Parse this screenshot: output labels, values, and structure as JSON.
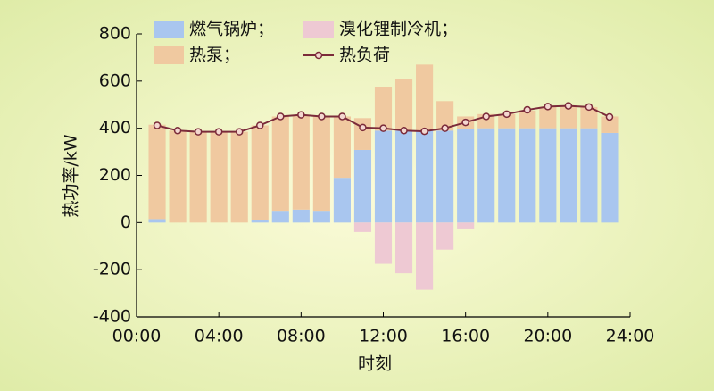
{
  "chart_data": {
    "type": "bar",
    "x": [
      1,
      2,
      3,
      4,
      5,
      6,
      7,
      8,
      9,
      10,
      11,
      12,
      13,
      14,
      15,
      16,
      17,
      18,
      19,
      20,
      21,
      22,
      23
    ],
    "series": [
      {
        "name": "燃气锅炉；",
        "color": "#a9c6ef",
        "type": "bar",
        "values": [
          15,
          0,
          0,
          0,
          0,
          12,
          50,
          55,
          50,
          190,
          308,
          390,
          390,
          390,
          390,
          395,
          400,
          400,
          400,
          400,
          400,
          400,
          380
        ]
      },
      {
        "name": "溴化锂制冷机；",
        "color": "#eec9d3",
        "type": "bar",
        "values": [
          0,
          0,
          0,
          0,
          0,
          0,
          0,
          0,
          0,
          0,
          -40,
          -175,
          -215,
          -285,
          -115,
          -25,
          0,
          0,
          0,
          0,
          0,
          0,
          0
        ]
      },
      {
        "name": "热泵；",
        "color": "#f0c9a0",
        "type": "bar",
        "values": [
          400,
          390,
          385,
          385,
          385,
          400,
          400,
          400,
          400,
          260,
          135,
          185,
          220,
          280,
          125,
          55,
          60,
          60,
          75,
          90,
          95,
          90,
          70
        ]
      },
      {
        "name": "热负荷",
        "color": "#7b2b3a",
        "type": "line",
        "values": [
          412,
          390,
          385,
          385,
          385,
          412,
          450,
          457,
          450,
          450,
          403,
          400,
          390,
          387,
          400,
          425,
          450,
          460,
          478,
          492,
          495,
          490,
          448
        ]
      }
    ],
    "xlabel": "时刻",
    "ylabel": "热功率/kW",
    "xlim": [
      0,
      24
    ],
    "xticks": [
      {
        "value": 0,
        "label": "00:00"
      },
      {
        "value": 4,
        "label": "04:00"
      },
      {
        "value": 8,
        "label": "08:00"
      },
      {
        "value": 12,
        "label": "12:00"
      },
      {
        "value": 16,
        "label": "16:00"
      },
      {
        "value": 20,
        "label": "20:00"
      },
      {
        "value": 24,
        "label": "24:00"
      }
    ],
    "ylim": [
      -400,
      800
    ],
    "yticks": [
      -400,
      -200,
      0,
      200,
      400,
      600,
      800
    ]
  }
}
